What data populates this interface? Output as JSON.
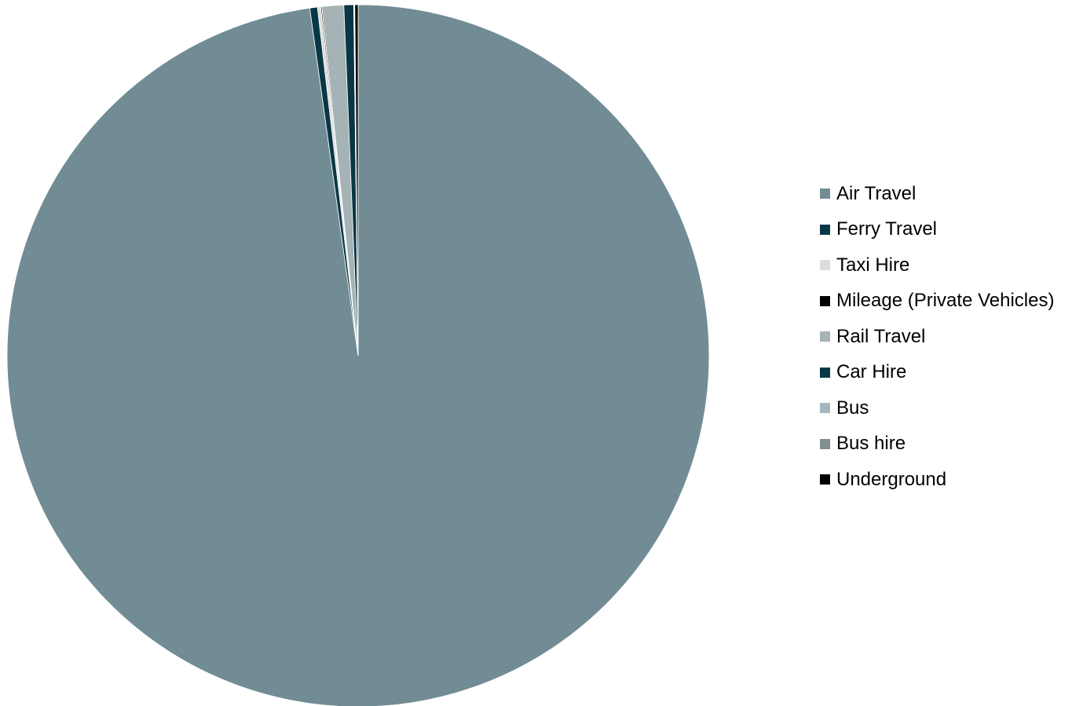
{
  "chart_data": {
    "type": "pie",
    "title": "",
    "legend": "right",
    "start_angle_deg": 0,
    "direction": "clockwise",
    "slices": [
      {
        "name": "Air Travel",
        "value": 97.8,
        "color": "#718c95"
      },
      {
        "name": "Ferry Travel",
        "value": 0.35,
        "color": "#093745"
      },
      {
        "name": "Taxi Hire",
        "value": 0.15,
        "color": "#dcdcdc"
      },
      {
        "name": "Mileage (Private Vehicles)",
        "value": 0.05,
        "color": "#000000"
      },
      {
        "name": "Rail Travel",
        "value": 1.0,
        "color": "#a5b2b6"
      },
      {
        "name": "Car Hire",
        "value": 0.45,
        "color": "#093745"
      },
      {
        "name": "Bus",
        "value": 0.03,
        "color": "#a6b7bf"
      },
      {
        "name": "Bus hire",
        "value": 0.02,
        "color": "#838e92"
      },
      {
        "name": "Underground",
        "value": 0.15,
        "color": "#000000"
      }
    ]
  }
}
